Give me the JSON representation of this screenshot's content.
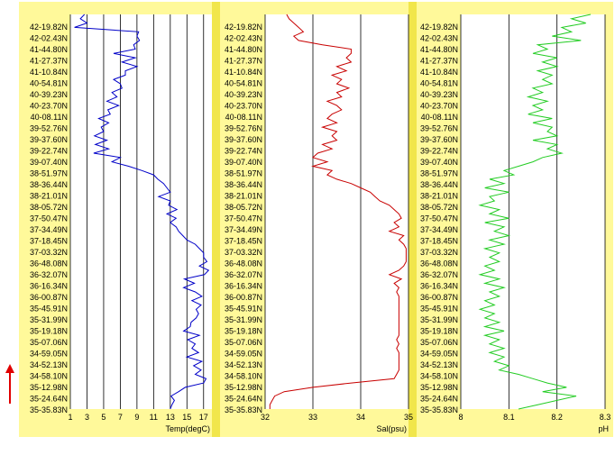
{
  "colors": {
    "panel_background": "#FFF99A",
    "panel_separator": "#F1E64B",
    "plot_background": "#FFFFFF",
    "gridline": "#000000",
    "arrow": "#E00000"
  },
  "latitude_labels": [
    "42-19.82N",
    "42-02.43N",
    "41-44.80N",
    "41-27.37N",
    "41-10.84N",
    "40-54.81N",
    "40-39.23N",
    "40-23.70N",
    "40-08.11N",
    "39-52.76N",
    "39-37.60N",
    "39-22.74N",
    "39-07.40N",
    "38-51.97N",
    "38-36.44N",
    "38-21.01N",
    "38-05.72N",
    "37-50.47N",
    "37-34.49N",
    "37-18.45N",
    "37-03.32N",
    "36-48.08N",
    "36-32.07N",
    "36-16.34N",
    "36-00.87N",
    "35-45.91N",
    "35-31.99N",
    "35-19.18N",
    "35-07.06N",
    "34-59.05N",
    "34-52.13N",
    "34-58.10N",
    "35-12.98N",
    "35-24.64N",
    "35-35.83N"
  ],
  "direction_marker": "up-arrow",
  "chart_data": [
    {
      "type": "line",
      "xlabel": "Temp(degC)",
      "xlim": [
        1,
        18
      ],
      "xticks": [
        1,
        3,
        5,
        7,
        9,
        11,
        13,
        15,
        17
      ],
      "grid": true,
      "color": "#0000C8",
      "profile": [
        [
          2.7,
          0
        ],
        [
          2.2,
          1
        ],
        [
          3.0,
          2
        ],
        [
          1.5,
          3
        ],
        [
          9.2,
          4
        ],
        [
          9.0,
          5
        ],
        [
          9.3,
          6
        ],
        [
          8.6,
          7
        ],
        [
          8.8,
          8
        ],
        [
          6.2,
          9
        ],
        [
          8.8,
          10
        ],
        [
          7.2,
          11
        ],
        [
          9.0,
          12
        ],
        [
          7.6,
          13
        ],
        [
          7.6,
          14
        ],
        [
          6.2,
          15
        ],
        [
          7.0,
          16
        ],
        [
          7.2,
          17
        ],
        [
          6.0,
          18
        ],
        [
          6.6,
          19
        ],
        [
          5.4,
          20
        ],
        [
          6.8,
          21
        ],
        [
          5.5,
          22
        ],
        [
          5.8,
          23
        ],
        [
          4.4,
          24
        ],
        [
          5.6,
          25
        ],
        [
          4.7,
          26
        ],
        [
          5.0,
          27
        ],
        [
          3.9,
          28
        ],
        [
          5.4,
          29
        ],
        [
          4.0,
          30
        ],
        [
          5.6,
          31
        ],
        [
          3.8,
          32
        ],
        [
          7.0,
          33
        ],
        [
          6.0,
          34
        ],
        [
          8.0,
          35
        ],
        [
          9.6,
          36
        ],
        [
          11.0,
          37
        ],
        [
          11.5,
          38
        ],
        [
          12.2,
          39
        ],
        [
          12.6,
          40
        ],
        [
          13.0,
          41
        ],
        [
          11.6,
          42
        ],
        [
          13.0,
          43
        ],
        [
          12.8,
          44
        ],
        [
          13.8,
          45
        ],
        [
          12.6,
          46
        ],
        [
          13.7,
          47
        ],
        [
          13.0,
          48
        ],
        [
          13.7,
          49
        ],
        [
          14.0,
          50
        ],
        [
          14.5,
          51
        ],
        [
          15.0,
          52
        ],
        [
          16.0,
          53
        ],
        [
          16.5,
          54
        ],
        [
          17.0,
          55
        ],
        [
          17.0,
          56
        ],
        [
          17.4,
          57
        ],
        [
          16.5,
          58
        ],
        [
          17.6,
          59
        ],
        [
          17.1,
          60
        ],
        [
          14.7,
          61
        ],
        [
          15.9,
          62
        ],
        [
          14.6,
          63
        ],
        [
          16.0,
          64
        ],
        [
          16.8,
          65
        ],
        [
          15.6,
          66
        ],
        [
          16.7,
          67
        ],
        [
          16.1,
          68
        ],
        [
          16.4,
          69
        ],
        [
          16.1,
          70
        ],
        [
          15.5,
          71
        ],
        [
          15.4,
          72
        ],
        [
          14.6,
          73
        ],
        [
          16.5,
          74
        ],
        [
          15.1,
          75
        ],
        [
          16.0,
          76
        ],
        [
          15.6,
          77
        ],
        [
          16.4,
          78
        ],
        [
          15.0,
          79
        ],
        [
          16.8,
          80
        ],
        [
          15.8,
          81
        ],
        [
          16.7,
          82
        ],
        [
          16.0,
          83
        ],
        [
          17.3,
          84
        ],
        [
          17.0,
          85
        ],
        [
          14.8,
          86
        ],
        [
          14.0,
          87
        ],
        [
          13.1,
          88
        ],
        [
          13.5,
          89
        ],
        [
          13.2,
          90
        ],
        [
          13.0,
          91
        ]
      ]
    },
    {
      "type": "line",
      "xlabel": "Sal(psu)",
      "xlim": [
        32,
        35
      ],
      "xticks": [
        32,
        33,
        34,
        35
      ],
      "grid": true,
      "color": "#C80000",
      "profile": [
        [
          32.45,
          0
        ],
        [
          32.5,
          1
        ],
        [
          32.6,
          2
        ],
        [
          32.7,
          3
        ],
        [
          32.8,
          4
        ],
        [
          32.6,
          5
        ],
        [
          32.7,
          6
        ],
        [
          33.2,
          7
        ],
        [
          33.8,
          8
        ],
        [
          33.8,
          9
        ],
        [
          33.7,
          10
        ],
        [
          33.8,
          11
        ],
        [
          33.5,
          12
        ],
        [
          33.7,
          13
        ],
        [
          33.4,
          14
        ],
        [
          33.6,
          15
        ],
        [
          33.5,
          16
        ],
        [
          33.75,
          17
        ],
        [
          33.5,
          18
        ],
        [
          33.6,
          19
        ],
        [
          33.3,
          20
        ],
        [
          33.5,
          21
        ],
        [
          33.6,
          22
        ],
        [
          33.4,
          23
        ],
        [
          33.3,
          24
        ],
        [
          33.5,
          25
        ],
        [
          33.2,
          26
        ],
        [
          33.5,
          27
        ],
        [
          33.4,
          28
        ],
        [
          33.5,
          29
        ],
        [
          33.2,
          30
        ],
        [
          33.4,
          31
        ],
        [
          33.1,
          32
        ],
        [
          33.0,
          33
        ],
        [
          33.3,
          34
        ],
        [
          33.0,
          35
        ],
        [
          33.4,
          36
        ],
        [
          33.3,
          37
        ],
        [
          33.5,
          38
        ],
        [
          33.8,
          39
        ],
        [
          34.0,
          40
        ],
        [
          34.2,
          41
        ],
        [
          34.3,
          42
        ],
        [
          34.4,
          43
        ],
        [
          34.6,
          44
        ],
        [
          34.7,
          45
        ],
        [
          34.8,
          46
        ],
        [
          34.85,
          47
        ],
        [
          34.7,
          48
        ],
        [
          34.8,
          49
        ],
        [
          34.6,
          50
        ],
        [
          34.9,
          51
        ],
        [
          34.8,
          52
        ],
        [
          34.9,
          53
        ],
        [
          34.95,
          54
        ],
        [
          34.95,
          55
        ],
        [
          34.95,
          56
        ],
        [
          34.95,
          57
        ],
        [
          34.9,
          58
        ],
        [
          34.8,
          59
        ],
        [
          34.6,
          60
        ],
        [
          34.85,
          61
        ],
        [
          34.7,
          62
        ],
        [
          34.8,
          63
        ],
        [
          34.75,
          64
        ],
        [
          34.8,
          65
        ],
        [
          34.8,
          66
        ],
        [
          34.8,
          67
        ],
        [
          34.8,
          68
        ],
        [
          34.8,
          69
        ],
        [
          34.8,
          70
        ],
        [
          34.8,
          71
        ],
        [
          34.8,
          72
        ],
        [
          34.8,
          73
        ],
        [
          34.8,
          74
        ],
        [
          34.75,
          75
        ],
        [
          34.8,
          76
        ],
        [
          34.75,
          77
        ],
        [
          34.8,
          78
        ],
        [
          34.8,
          79
        ],
        [
          34.8,
          80
        ],
        [
          34.8,
          81
        ],
        [
          34.8,
          82
        ],
        [
          34.75,
          83
        ],
        [
          34.7,
          84
        ],
        [
          33.8,
          85
        ],
        [
          33.0,
          86
        ],
        [
          32.4,
          87
        ],
        [
          32.2,
          88
        ],
        [
          32.15,
          89
        ],
        [
          32.1,
          90
        ],
        [
          32.1,
          91
        ]
      ]
    },
    {
      "type": "line",
      "xlabel": "pH",
      "xlim": [
        8.0,
        8.3
      ],
      "xticks": [
        8,
        8.1,
        8.2,
        8.3
      ],
      "xtick_labels": [
        "8",
        "8.1",
        "8.2",
        "8.3"
      ],
      "grid": true,
      "color": "#22CC22",
      "profile": [
        [
          8.27,
          0
        ],
        [
          8.23,
          1
        ],
        [
          8.26,
          2
        ],
        [
          8.21,
          3
        ],
        [
          8.23,
          4
        ],
        [
          8.19,
          5
        ],
        [
          8.25,
          6
        ],
        [
          8.16,
          7
        ],
        [
          8.18,
          8
        ],
        [
          8.15,
          9
        ],
        [
          8.2,
          10
        ],
        [
          8.17,
          11
        ],
        [
          8.2,
          12
        ],
        [
          8.16,
          13
        ],
        [
          8.19,
          14
        ],
        [
          8.17,
          15
        ],
        [
          8.19,
          16
        ],
        [
          8.15,
          17
        ],
        [
          8.17,
          18
        ],
        [
          8.14,
          19
        ],
        [
          8.18,
          20
        ],
        [
          8.15,
          21
        ],
        [
          8.17,
          22
        ],
        [
          8.14,
          23
        ],
        [
          8.19,
          24
        ],
        [
          8.15,
          25
        ],
        [
          8.19,
          26
        ],
        [
          8.18,
          27
        ],
        [
          8.2,
          28
        ],
        [
          8.15,
          29
        ],
        [
          8.2,
          30
        ],
        [
          8.18,
          31
        ],
        [
          8.21,
          32
        ],
        [
          8.17,
          33
        ],
        [
          8.15,
          34
        ],
        [
          8.12,
          35
        ],
        [
          8.09,
          36
        ],
        [
          8.11,
          37
        ],
        [
          8.06,
          38
        ],
        [
          8.09,
          39
        ],
        [
          8.05,
          40
        ],
        [
          8.1,
          41
        ],
        [
          8.06,
          42
        ],
        [
          8.07,
          43
        ],
        [
          8.04,
          44
        ],
        [
          8.08,
          45
        ],
        [
          8.06,
          46
        ],
        [
          8.1,
          47
        ],
        [
          8.05,
          48
        ],
        [
          8.09,
          49
        ],
        [
          8.07,
          50
        ],
        [
          8.1,
          51
        ],
        [
          8.06,
          52
        ],
        [
          8.09,
          53
        ],
        [
          8.05,
          54
        ],
        [
          8.08,
          55
        ],
        [
          8.06,
          56
        ],
        [
          8.08,
          57
        ],
        [
          8.05,
          58
        ],
        [
          8.07,
          59
        ],
        [
          8.04,
          60
        ],
        [
          8.08,
          61
        ],
        [
          8.05,
          62
        ],
        [
          8.09,
          63
        ],
        [
          8.06,
          64
        ],
        [
          8.08,
          65
        ],
        [
          8.05,
          66
        ],
        [
          8.07,
          67
        ],
        [
          8.04,
          68
        ],
        [
          8.07,
          69
        ],
        [
          8.05,
          70
        ],
        [
          8.08,
          71
        ],
        [
          8.05,
          72
        ],
        [
          8.09,
          73
        ],
        [
          8.05,
          74
        ],
        [
          8.08,
          75
        ],
        [
          8.06,
          76
        ],
        [
          8.09,
          77
        ],
        [
          8.06,
          78
        ],
        [
          8.09,
          79
        ],
        [
          8.07,
          80
        ],
        [
          8.1,
          81
        ],
        [
          8.08,
          82
        ],
        [
          8.12,
          83
        ],
        [
          8.15,
          84
        ],
        [
          8.18,
          85
        ],
        [
          8.22,
          86
        ],
        [
          8.17,
          87
        ],
        [
          8.24,
          88
        ],
        [
          8.2,
          89
        ],
        [
          8.16,
          90
        ],
        [
          8.12,
          91
        ]
      ]
    }
  ]
}
